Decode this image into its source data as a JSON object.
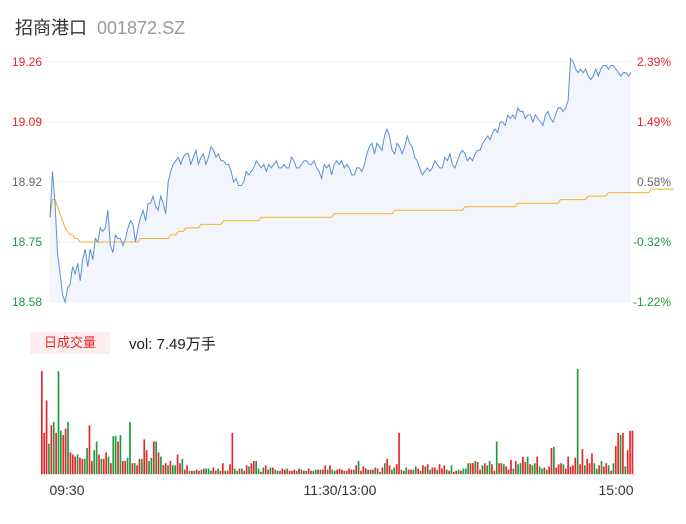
{
  "header": {
    "name": "招商港口",
    "code": "001872.SZ"
  },
  "volume_panel": {
    "tab_label": "日成交量",
    "vol_label": "vol: 7.49万手"
  },
  "colors": {
    "up": "#e8242b",
    "down": "#1a9b3a",
    "price_line": "#5b8fd9",
    "avg_line": "#f3b32a",
    "area": "#f2f6fc"
  },
  "chart_data": [
    {
      "type": "line",
      "title": "",
      "series": [
        {
          "values": [
            18.82,
            18.95,
            18.86,
            18.72,
            18.66,
            18.6,
            18.58,
            18.62,
            18.63,
            18.68,
            18.66,
            18.69,
            18.64,
            18.7,
            18.73,
            18.68,
            18.73,
            18.7,
            18.76,
            18.75,
            18.79,
            18.78,
            18.79,
            18.84,
            18.74,
            18.72,
            18.77,
            18.76,
            18.76,
            18.74,
            18.76,
            18.79,
            18.81,
            18.8,
            18.75,
            18.79,
            18.82,
            18.84,
            18.81,
            18.86,
            18.86,
            18.88,
            18.85,
            18.84,
            18.88,
            18.86,
            18.83,
            18.92,
            18.95,
            18.97,
            18.98,
            18.99,
            18.97,
            18.99,
            19.0,
            19.0,
            18.97,
            18.99,
            19.01,
            18.97,
            18.99,
            19.0,
            18.97,
            18.99,
            19.02,
            19.01,
            18.99,
            19.0,
            18.98,
            18.98,
            18.97,
            18.97,
            18.95,
            18.92,
            18.93,
            18.91,
            18.91,
            18.92,
            18.95,
            18.94,
            18.95,
            18.96,
            18.98,
            18.97,
            18.96,
            18.97,
            18.95,
            18.97,
            18.96,
            18.97,
            18.98,
            18.96,
            18.96,
            18.97,
            18.96,
            18.96,
            18.99,
            18.98,
            18.96,
            18.96,
            18.97,
            18.98,
            18.98,
            18.97,
            18.97,
            18.98,
            18.96,
            18.95,
            18.93,
            18.97,
            18.96,
            18.97,
            18.94,
            18.97,
            18.98,
            18.97,
            18.98,
            18.96,
            18.97,
            18.96,
            18.94,
            18.94,
            18.96,
            18.96,
            18.95,
            18.97,
            19.0,
            19.02,
            19.03,
            19.0,
            19.03,
            19.02,
            19.01,
            19.05,
            19.07,
            19.05,
            19.01,
            19.0,
            19.03,
            19.02,
            19.0,
            19.02,
            19.05,
            19.03,
            19.02,
            18.99,
            18.98,
            18.96,
            18.94,
            18.95,
            18.96,
            18.95,
            18.96,
            18.98,
            18.97,
            18.96,
            18.96,
            18.99,
            18.98,
            19.0,
            18.97,
            18.96,
            18.98,
            19.0,
            19.01,
            19.0,
            18.98,
            18.99,
            18.98,
            19.0,
            19.01,
            19.01,
            19.03,
            19.04,
            19.05,
            19.04,
            19.06,
            19.07,
            19.06,
            19.09,
            19.09,
            19.08,
            19.11,
            19.1,
            19.11,
            19.1,
            19.13,
            19.12,
            19.12,
            19.1,
            19.11,
            19.11,
            19.09,
            19.11,
            19.1,
            19.09,
            19.08,
            19.11,
            19.12,
            19.1,
            19.09,
            19.11,
            19.13,
            19.13,
            19.12,
            19.13,
            19.15,
            19.27,
            19.26,
            19.24,
            19.23,
            19.24,
            19.23,
            19.24,
            19.22,
            19.21,
            19.22,
            19.24,
            19.22,
            19.24,
            19.25,
            19.25,
            19.24,
            19.25,
            19.25,
            19.24,
            19.23,
            19.22,
            19.23,
            19.23,
            19.22,
            19.23
          ]
        },
        {
          "values": [
            18.82,
            18.87,
            18.87,
            18.85,
            18.83,
            18.81,
            18.79,
            18.78,
            18.77,
            18.77,
            18.76,
            18.76,
            18.75,
            18.75,
            18.75,
            18.75,
            18.75,
            18.75,
            18.75,
            18.75,
            18.75,
            18.75,
            18.75,
            18.75,
            18.75,
            18.75,
            18.75,
            18.75,
            18.75,
            18.75,
            18.75,
            18.75,
            18.75,
            18.75,
            18.75,
            18.75,
            18.76,
            18.76,
            18.76,
            18.76,
            18.76,
            18.76,
            18.76,
            18.76,
            18.76,
            18.76,
            18.76,
            18.76,
            18.77,
            18.77,
            18.77,
            18.78,
            18.78,
            18.78,
            18.79,
            18.79,
            18.79,
            18.79,
            18.79,
            18.79,
            18.8,
            18.8,
            18.8,
            18.8,
            18.8,
            18.8,
            18.8,
            18.8,
            18.8,
            18.81,
            18.81,
            18.81,
            18.81,
            18.81,
            18.81,
            18.81,
            18.81,
            18.81,
            18.81,
            18.81,
            18.81,
            18.81,
            18.81,
            18.81,
            18.82,
            18.82,
            18.82,
            18.82,
            18.82,
            18.82,
            18.82,
            18.82,
            18.82,
            18.82,
            18.82,
            18.82,
            18.82,
            18.82,
            18.82,
            18.82,
            18.82,
            18.82,
            18.82,
            18.82,
            18.82,
            18.82,
            18.82,
            18.82,
            18.82,
            18.82,
            18.82,
            18.82,
            18.82,
            18.83,
            18.83,
            18.83,
            18.83,
            18.83,
            18.83,
            18.83,
            18.83,
            18.83,
            18.83,
            18.83,
            18.83,
            18.83,
            18.83,
            18.83,
            18.83,
            18.83,
            18.83,
            18.83,
            18.83,
            18.83,
            18.83,
            18.83,
            18.83,
            18.84,
            18.84,
            18.84,
            18.84,
            18.84,
            18.84,
            18.84,
            18.84,
            18.84,
            18.84,
            18.84,
            18.84,
            18.84,
            18.84,
            18.84,
            18.84,
            18.84,
            18.84,
            18.84,
            18.84,
            18.84,
            18.84,
            18.84,
            18.84,
            18.84,
            18.84,
            18.84,
            18.84,
            18.85,
            18.85,
            18.85,
            18.85,
            18.85,
            18.85,
            18.85,
            18.85,
            18.85,
            18.85,
            18.85,
            18.85,
            18.85,
            18.85,
            18.85,
            18.85,
            18.85,
            18.85,
            18.85,
            18.85,
            18.85,
            18.86,
            18.86,
            18.86,
            18.86,
            18.86,
            18.86,
            18.86,
            18.86,
            18.86,
            18.86,
            18.86,
            18.86,
            18.86,
            18.86,
            18.86,
            18.86,
            18.86,
            18.87,
            18.87,
            18.87,
            18.87,
            18.87,
            18.87,
            18.87,
            18.87,
            18.87,
            18.87,
            18.87,
            18.88,
            18.88,
            18.88,
            18.88,
            18.88,
            18.88,
            18.88,
            18.88,
            18.89,
            18.89,
            18.89,
            18.89,
            18.89,
            18.89,
            18.89,
            18.89,
            18.89,
            18.89,
            18.89,
            18.89,
            18.89,
            18.89,
            18.89,
            18.89,
            18.89,
            18.9,
            18.9,
            18.9,
            18.9,
            18.9,
            18.9,
            18.9,
            18.9,
            18.9,
            18.9
          ]
        }
      ],
      "ylim": [
        18.58,
        19.26
      ],
      "y_ticks": [
        "19.26",
        "19.09",
        "18.92",
        "18.75",
        "18.58"
      ],
      "y2_ticks": [
        "2.39%",
        "1.49%",
        "0.58%",
        "-0.32%",
        "-1.22%"
      ],
      "area_fill": true
    },
    {
      "type": "bar",
      "title": "",
      "x_ticks": [
        "09:30",
        "11:30/13:00",
        "15:00"
      ],
      "values": [
        95,
        38,
        68,
        28,
        45,
        48,
        38,
        95,
        40,
        36,
        42,
        48,
        20,
        18,
        16,
        18,
        15,
        14,
        14,
        24,
        45,
        12,
        22,
        30,
        18,
        14,
        14,
        20,
        16,
        10,
        35,
        35,
        30,
        36,
        12,
        12,
        15,
        48,
        10,
        10,
        8,
        14,
        14,
        32,
        22,
        12,
        15,
        30,
        30,
        20,
        16,
        8,
        10,
        8,
        12,
        8,
        8,
        18,
        10,
        14,
        4,
        8,
        3,
        3,
        3,
        4,
        3,
        4,
        5,
        5,
        5,
        3,
        6,
        3,
        5,
        3,
        10,
        3,
        3,
        9,
        38,
        5,
        3,
        5,
        5,
        3,
        8,
        7,
        10,
        12,
        12,
        5,
        2,
        6,
        8,
        4,
        6,
        6,
        4,
        3,
        3,
        5,
        4,
        5,
        3,
        3,
        4,
        3,
        5,
        4,
        3,
        3,
        5,
        3,
        3,
        4,
        4,
        4,
        4,
        8,
        4,
        8,
        4,
        3,
        4,
        5,
        4,
        3,
        3,
        5,
        4,
        4,
        8,
        12,
        3,
        7,
        5,
        4,
        4,
        4,
        6,
        5,
        2,
        6,
        10,
        14,
        8,
        4,
        6,
        9,
        38,
        4,
        3,
        6,
        4,
        4,
        4,
        7,
        5,
        3,
        8,
        7,
        9,
        4,
        6,
        6,
        4,
        9,
        5,
        8,
        4,
        3,
        8,
        2,
        3,
        4,
        3,
        5,
        5,
        10,
        10,
        10,
        12,
        11,
        4,
        8,
        10,
        8,
        12,
        9,
        3,
        30,
        10,
        10,
        9,
        7,
        4,
        13,
        5,
        12,
        9,
        10,
        16,
        11,
        16,
        9,
        8,
        10,
        16,
        7,
        5,
        6,
        4,
        7,
        24,
        25,
        6,
        9,
        10,
        9,
        5,
        16,
        7,
        8,
        15,
        97,
        9,
        23,
        8,
        14,
        10,
        19,
        10,
        5,
        8,
        12,
        7,
        10,
        8,
        3,
        10,
        26,
        38,
        36,
        38,
        7,
        22,
        40,
        40
      ],
      "up": [
        1,
        1,
        1,
        0,
        1,
        0,
        1,
        0,
        0,
        1,
        1,
        0,
        1,
        1,
        1,
        0,
        1,
        1,
        0,
        0,
        1,
        1,
        0,
        0,
        1,
        0,
        1,
        1,
        0,
        1,
        0,
        0,
        1,
        0,
        1,
        1,
        0,
        0,
        1,
        0,
        1,
        1,
        0,
        1,
        1,
        0,
        0,
        1,
        0,
        1,
        0,
        1,
        1,
        0,
        1,
        0,
        0,
        1,
        1,
        0,
        1,
        1,
        0,
        1,
        0,
        1,
        1,
        0,
        1,
        0,
        0,
        0,
        1,
        1,
        0,
        1,
        1,
        0,
        1,
        1,
        1,
        0,
        0,
        1,
        0,
        1,
        1,
        0,
        1,
        1,
        0,
        0,
        1,
        0,
        1,
        1,
        0,
        1,
        0,
        1,
        0,
        1,
        1,
        0,
        1,
        1,
        1,
        0,
        1,
        0,
        1,
        0,
        1,
        1,
        0,
        0,
        1,
        0,
        1,
        1,
        0,
        1,
        0,
        0,
        1,
        1,
        1,
        0,
        1,
        1,
        1,
        0,
        1,
        0,
        1,
        1,
        1,
        0,
        1,
        1,
        0,
        1,
        0,
        1,
        0,
        1,
        1,
        0,
        0,
        1,
        1,
        0,
        1,
        0,
        1,
        1,
        0,
        0,
        1,
        1,
        1,
        0,
        1,
        0,
        1,
        1,
        0,
        1,
        1,
        1,
        0,
        1,
        0,
        1,
        1,
        0,
        1,
        0,
        0,
        0,
        1,
        1,
        0,
        1,
        1,
        0,
        1,
        0,
        0,
        1,
        1,
        0,
        1,
        1,
        0,
        1,
        1,
        1,
        0,
        1,
        0,
        0,
        1,
        1,
        0,
        1,
        0,
        0,
        1,
        0,
        0,
        1,
        0,
        1,
        1,
        0,
        1,
        1,
        1,
        0,
        1,
        1,
        1,
        1,
        1,
        0,
        1,
        1,
        0,
        1,
        1,
        1,
        0,
        0,
        1,
        0,
        1,
        1,
        0,
        1,
        0,
        1,
        1,
        0,
        1,
        0,
        1,
        1,
        1,
        1,
        1,
        1,
        1,
        1,
        0
      ]
    }
  ]
}
